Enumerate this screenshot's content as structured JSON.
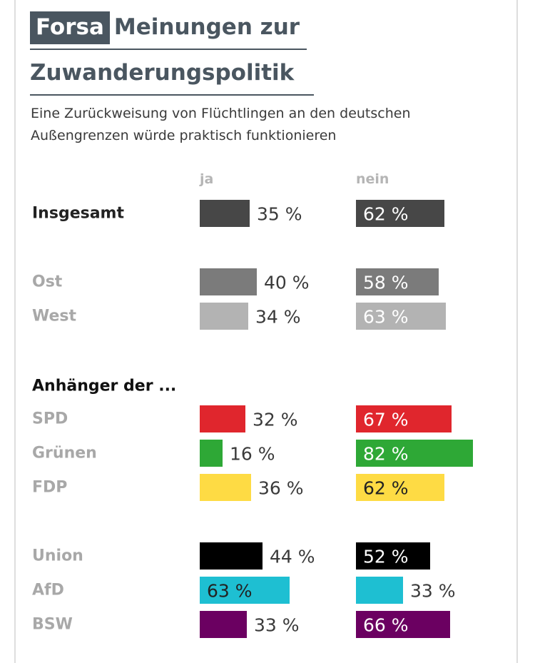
{
  "header": {
    "tag": "Forsa",
    "title_line1": "Meinungen zur",
    "title_line2": "Zuwanderungspolitik",
    "subtitle": "Eine Zurückweisung von Flüchtlingen an den deutschen Außengrenzen würde praktisch funktionieren"
  },
  "chart_data": {
    "type": "bar",
    "orientation": "horizontal",
    "columns": [
      "ja",
      "nein"
    ],
    "value_suffix": " %",
    "max_value": 100,
    "rows": [
      {
        "label": "Insgesamt",
        "ja": 35,
        "nein": 62,
        "color": "#474747",
        "label_color": "#222222",
        "label_bold": true
      },
      {
        "label": "Ost",
        "ja": 40,
        "nein": 58,
        "color": "#7b7b7b",
        "label_color": "#a8a8a8",
        "label_bold": true
      },
      {
        "label": "West",
        "ja": 34,
        "nein": 63,
        "color": "#b3b3b3",
        "label_color": "#a8a8a8",
        "label_bold": true
      },
      {
        "label": "SPD",
        "ja": 32,
        "nein": 67,
        "color": "#e0262d",
        "label_color": "#a8a8a8",
        "label_bold": true
      },
      {
        "label": "Grünen",
        "ja": 16,
        "nein": 82,
        "color": "#2ea836",
        "label_color": "#a8a8a8",
        "label_bold": true
      },
      {
        "label": "FDP",
        "ja": 36,
        "nein": 62,
        "color": "#fedb44",
        "label_color": "#a8a8a8",
        "label_bold": true
      },
      {
        "label": "Union",
        "ja": 44,
        "nein": 52,
        "color": "#000000",
        "label_color": "#a8a8a8",
        "label_bold": true
      },
      {
        "label": "AfD",
        "ja": 63,
        "nein": 33,
        "color": "#1ebfd2",
        "label_color": "#a8a8a8",
        "label_bold": true
      },
      {
        "label": "BSW",
        "ja": 33,
        "nein": 66,
        "color": "#6b0061",
        "label_color": "#a8a8a8",
        "label_bold": true
      }
    ],
    "group_headings": [
      {
        "label": "Anhänger der ...",
        "before_row": "SPD"
      }
    ]
  }
}
